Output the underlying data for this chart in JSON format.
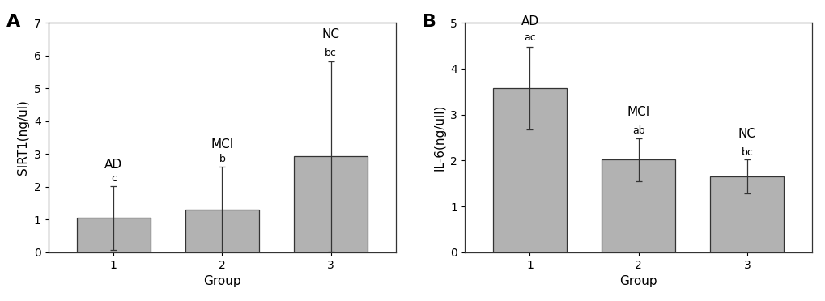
{
  "panel_A": {
    "title": "A",
    "ylabel": "SIRT1(ng/ul)",
    "xlabel": "Group",
    "categories": [
      1,
      2,
      3
    ],
    "values": [
      1.05,
      1.3,
      2.92
    ],
    "errors": [
      0.97,
      1.32,
      2.9
    ],
    "bar_color": "#b2b2b2",
    "bar_edge_color": "#333333",
    "ylim": [
      0,
      7
    ],
    "yticks": [
      0,
      1,
      2,
      3,
      4,
      5,
      6,
      7
    ],
    "xlim": [
      0.4,
      3.6
    ],
    "group_labels": [
      "AD",
      "MCI",
      "NC"
    ],
    "sig_labels": [
      "c",
      "b",
      "bc"
    ],
    "sig_label_offsets": [
      2.1,
      2.68,
      5.92
    ],
    "group_label_offsets": [
      2.48,
      3.1,
      6.45
    ]
  },
  "panel_B": {
    "title": "B",
    "ylabel": "IL-6(ng/ull)",
    "xlabel": "Group",
    "categories": [
      1,
      2,
      3
    ],
    "values": [
      3.58,
      2.02,
      1.65
    ],
    "errors": [
      0.9,
      0.47,
      0.37
    ],
    "bar_color": "#b2b2b2",
    "bar_edge_color": "#333333",
    "ylim": [
      0,
      5
    ],
    "yticks": [
      0,
      1,
      2,
      3,
      4,
      5
    ],
    "xlim": [
      0.4,
      3.6
    ],
    "group_labels": [
      "AD",
      "MCI",
      "NC"
    ],
    "sig_labels": [
      "ac",
      "ab",
      "bc"
    ],
    "sig_label_offsets": [
      4.56,
      2.54,
      2.06
    ],
    "group_label_offsets": [
      4.9,
      2.92,
      2.44
    ]
  },
  "bar_width": 0.68,
  "background_color": "#ffffff",
  "panel_title_fontsize": 16,
  "label_fontsize": 11,
  "tick_fontsize": 10,
  "group_label_fontsize": 11,
  "sig_fontsize": 9
}
